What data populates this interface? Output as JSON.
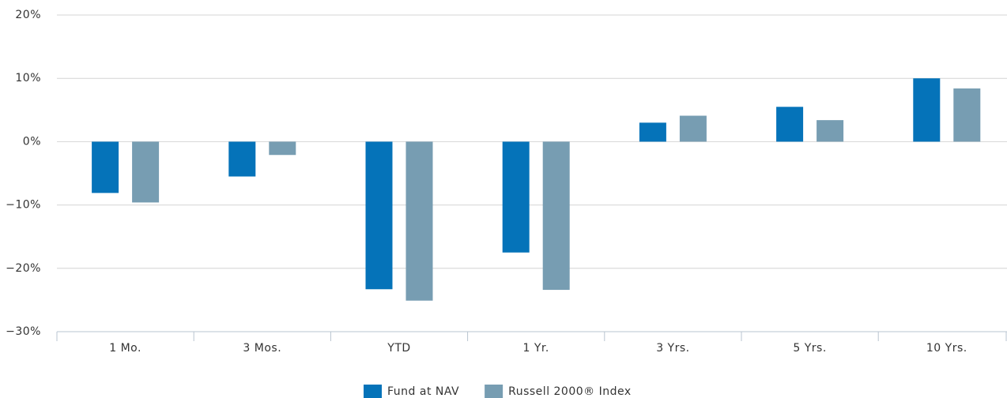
{
  "chart_data": {
    "type": "bar",
    "categories": [
      "1 Mo.",
      "3 Mos.",
      "YTD",
      "1 Yr.",
      "3 Yrs.",
      "5 Yrs.",
      "10 Yrs."
    ],
    "series": [
      {
        "name": "Fund at NAV",
        "color": "#0573b9",
        "values": [
          -8.1,
          -5.5,
          -23.3,
          -17.5,
          3.0,
          5.5,
          10.0
        ]
      },
      {
        "name": "Russell 2000® Index",
        "color": "#779db2",
        "values": [
          -9.6,
          -2.1,
          -25.1,
          -23.4,
          4.1,
          3.4,
          8.4
        ]
      }
    ],
    "ylim": [
      -30,
      20
    ],
    "yticks": [
      {
        "value": -30,
        "label": "−30%"
      },
      {
        "value": -20,
        "label": "−20%"
      },
      {
        "value": -10,
        "label": "−10%"
      },
      {
        "value": 0,
        "label": "0%"
      },
      {
        "value": 10,
        "label": "10%"
      },
      {
        "value": 20,
        "label": "20%"
      }
    ],
    "grid": true,
    "legend": "bottom"
  }
}
